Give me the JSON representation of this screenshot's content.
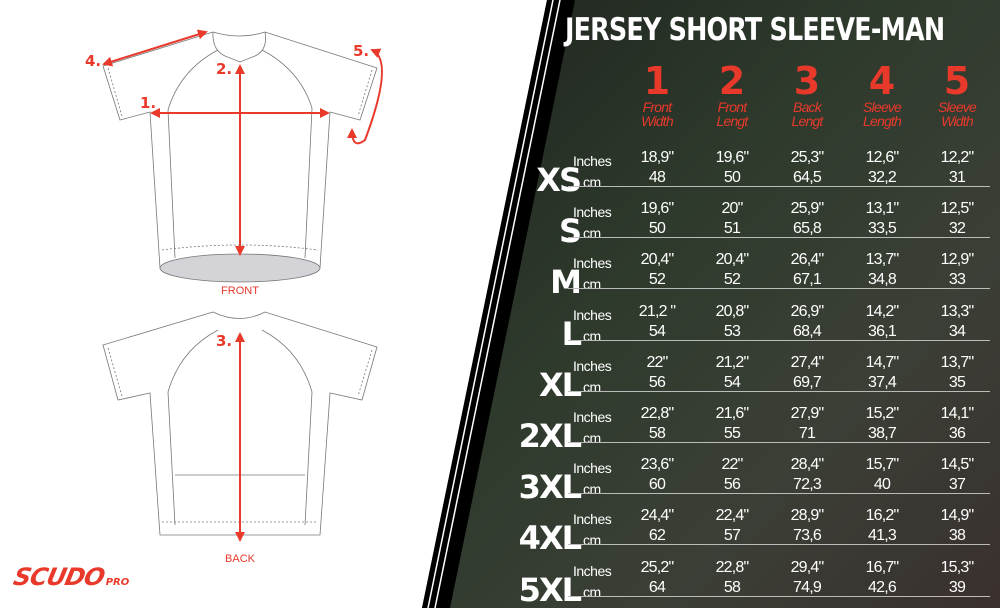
{
  "title": "JERSEY SHORT SLEEVE-MAN",
  "colors": {
    "accent": "#e8392b",
    "text": "#ffffff",
    "background": "#2b2b2b"
  },
  "logo": {
    "main": "SCUDO",
    "sub": "PRO"
  },
  "diagram": {
    "front_label": "FRONT",
    "back_label": "BACK",
    "markers": [
      "1.",
      "2.",
      "3.",
      "4.",
      "5."
    ]
  },
  "columns": [
    {
      "num": "1",
      "line1": "Front",
      "line2": "Width"
    },
    {
      "num": "2",
      "line1": "Front",
      "line2": "Lengt"
    },
    {
      "num": "3",
      "line1": "Back",
      "line2": "Lengt"
    },
    {
      "num": "4",
      "line1": "Sleeve",
      "line2": "Length"
    },
    {
      "num": "5",
      "line1": "Sleeve",
      "line2": "Width"
    }
  ],
  "units": {
    "inches": "Inches",
    "cm": "cm"
  },
  "rows": [
    {
      "size": "XS",
      "inches": [
        "18,9\"",
        "19,6\"",
        "25,3\"",
        "12,6\"",
        "12,2\""
      ],
      "cm": [
        "48",
        "50",
        "64,5",
        "32,2",
        "31"
      ]
    },
    {
      "size": "S",
      "inches": [
        "19,6\"",
        "20\"",
        "25,9\"",
        "13,1\"",
        "12,5\""
      ],
      "cm": [
        "50",
        "51",
        "65,8",
        "33,5",
        "32"
      ]
    },
    {
      "size": "M",
      "inches": [
        "20,4\"",
        "20,4\"",
        "26,4\"",
        "13,7\"",
        "12,9\""
      ],
      "cm": [
        "52",
        "52",
        "67,1",
        "34,8",
        "33"
      ]
    },
    {
      "size": "L",
      "inches": [
        "21,2 \"",
        "20,8\"",
        "26,9\"",
        "14,2\"",
        "13,3\""
      ],
      "cm": [
        "54",
        "53",
        "68,4",
        "36,1",
        "34"
      ]
    },
    {
      "size": "XL",
      "inches": [
        "22\"",
        "21,2\"",
        "27,4\"",
        "14,7\"",
        "13,7\""
      ],
      "cm": [
        "56",
        "54",
        "69,7",
        "37,4",
        "35"
      ]
    },
    {
      "size": "2XL",
      "inches": [
        "22,8\"",
        "21,6\"",
        "27,9\"",
        "15,2\"",
        "14,1\""
      ],
      "cm": [
        "58",
        "55",
        "71",
        "38,7",
        "36"
      ]
    },
    {
      "size": "3XL",
      "inches": [
        "23,6\"",
        "22\"",
        "28,4\"",
        "15,7\"",
        "14,5\""
      ],
      "cm": [
        "60",
        "56",
        "72,3",
        "40",
        "37"
      ]
    },
    {
      "size": "4XL",
      "inches": [
        "24,4\"",
        "22,4\"",
        "28,9\"",
        "16,2\"",
        "14,9\""
      ],
      "cm": [
        "62",
        "57",
        "73,6",
        "41,3",
        "38"
      ]
    },
    {
      "size": "5XL",
      "inches": [
        "25,2\"",
        "22,8\"",
        "29,4\"",
        "16,7\"",
        "15,3\""
      ],
      "cm": [
        "64",
        "58",
        "74,9",
        "42,6",
        "39"
      ]
    }
  ]
}
